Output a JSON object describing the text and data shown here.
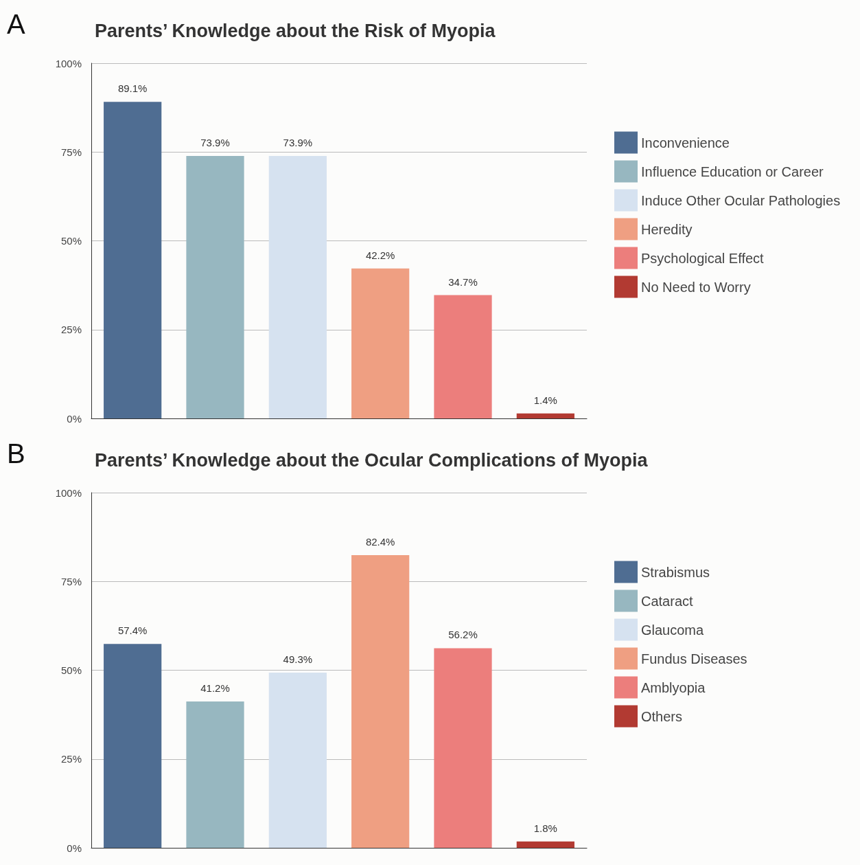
{
  "chart_data": [
    {
      "type": "bar",
      "title": "Parents’ Knowledge about the Risk of Myopia",
      "annotations": [
        "A"
      ],
      "categories": [
        null,
        null,
        null,
        null,
        null,
        null
      ],
      "series": [
        {
          "name": "Inconvenience",
          "color": "#4f6d92",
          "values": [
            89.1,
            null,
            null,
            null,
            null,
            null
          ],
          "value_labels": [
            "89.1%",
            null,
            null,
            null,
            null,
            null
          ]
        },
        {
          "name": "Influence Education or Career",
          "color": "#97b7c0",
          "values": [
            null,
            73.9,
            null,
            null,
            null,
            null
          ],
          "value_labels": [
            null,
            "73.9%",
            null,
            null,
            null,
            null
          ]
        },
        {
          "name": "Induce Other Ocular Pathologies",
          "color": "#d6e2f0",
          "values": [
            null,
            null,
            73.9,
            null,
            null,
            null
          ],
          "value_labels": [
            null,
            null,
            "73.9%",
            null,
            null,
            null
          ]
        },
        {
          "name": "Heredity",
          "color": "#ef9f82",
          "values": [
            null,
            null,
            null,
            42.2,
            null,
            null
          ],
          "value_labels": [
            null,
            null,
            null,
            "42.2%",
            null,
            null
          ]
        },
        {
          "name": "Psychological Effect",
          "color": "#ec7e7c",
          "values": [
            null,
            null,
            null,
            null,
            34.7,
            null
          ],
          "value_labels": [
            null,
            null,
            null,
            null,
            "34.7%",
            null
          ]
        },
        {
          "name": "No Need to Worry",
          "color": "#b23a32",
          "values": [
            null,
            null,
            null,
            null,
            null,
            1.4
          ],
          "value_labels": [
            null,
            null,
            null,
            null,
            null,
            "1.4%"
          ]
        }
      ],
      "ylim": [
        0,
        100
      ],
      "yticks": [
        {
          "value": 0,
          "label": "0%"
        },
        {
          "value": 25,
          "label": "25%"
        },
        {
          "value": 50,
          "label": "50%"
        },
        {
          "value": 75,
          "label": "75%"
        },
        {
          "value": 100,
          "label": "100%"
        }
      ],
      "grid": "y",
      "legend": "right"
    },
    {
      "type": "bar",
      "title": "Parents’ Knowledge about the Ocular Complications of Myopia",
      "annotations": [
        "B"
      ],
      "categories": [
        null,
        null,
        null,
        null,
        null,
        null
      ],
      "series": [
        {
          "name": "Strabismus",
          "color": "#4f6d92",
          "values": [
            57.4,
            null,
            null,
            null,
            null,
            null
          ],
          "value_labels": [
            "57.4%",
            null,
            null,
            null,
            null,
            null
          ]
        },
        {
          "name": "Cataract",
          "color": "#97b7c0",
          "values": [
            null,
            41.2,
            null,
            null,
            null,
            null
          ],
          "value_labels": [
            null,
            "41.2%",
            null,
            null,
            null,
            null
          ]
        },
        {
          "name": "Glaucoma",
          "color": "#d6e2f0",
          "values": [
            null,
            null,
            49.3,
            null,
            null,
            null
          ],
          "value_labels": [
            null,
            null,
            "49.3%",
            null,
            null,
            null
          ]
        },
        {
          "name": "Fundus Diseases",
          "color": "#ef9f82",
          "values": [
            null,
            null,
            null,
            82.4,
            null,
            null
          ],
          "value_labels": [
            null,
            null,
            null,
            "82.4%",
            null,
            null
          ]
        },
        {
          "name": "Amblyopia",
          "color": "#ec7e7c",
          "values": [
            null,
            null,
            null,
            null,
            56.2,
            null
          ],
          "value_labels": [
            null,
            null,
            null,
            null,
            "56.2%",
            null
          ]
        },
        {
          "name": "Others",
          "color": "#b23a32",
          "values": [
            null,
            null,
            null,
            null,
            null,
            1.8
          ],
          "value_labels": [
            null,
            null,
            null,
            null,
            null,
            "1.8%"
          ]
        }
      ],
      "ylim": [
        0,
        100
      ],
      "yticks": [
        {
          "value": 0,
          "label": "0%"
        },
        {
          "value": 25,
          "label": "25%"
        },
        {
          "value": 50,
          "label": "50%"
        },
        {
          "value": 75,
          "label": "75%"
        },
        {
          "value": 100,
          "label": "100%"
        }
      ],
      "grid": "y",
      "legend": "right"
    }
  ]
}
